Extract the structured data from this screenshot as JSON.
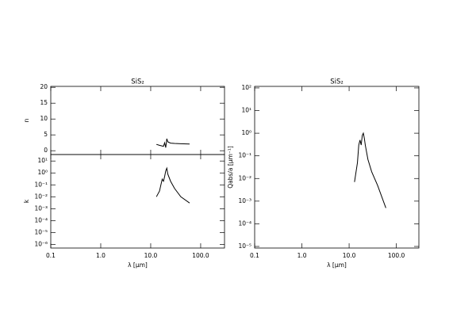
{
  "chart_data": [
    {
      "type": "line",
      "title": "SiS₂",
      "ylabel": "n",
      "xscale": "log",
      "yscale": "linear",
      "x": [
        13,
        15,
        18,
        19,
        20,
        21,
        22,
        25,
        30,
        40,
        60
      ],
      "values": [
        2.0,
        1.7,
        1.4,
        2.5,
        1.0,
        3.8,
        2.8,
        2.4,
        2.3,
        2.2,
        2.1
      ],
      "xlim": [
        0.1,
        300
      ],
      "xticks": [
        0.1,
        1,
        10,
        100
      ],
      "ylim": [
        -1.2,
        20.3
      ],
      "yticks": [
        0,
        5,
        10,
        15,
        20
      ]
    },
    {
      "type": "line",
      "xlabel": "λ [μm]",
      "ylabel": "k",
      "xscale": "log",
      "yscale": "log",
      "x": [
        13,
        15,
        16,
        17,
        18,
        19,
        20,
        21,
        22,
        25,
        30,
        40,
        60
      ],
      "values": [
        0.01,
        0.03,
        0.1,
        0.3,
        0.2,
        0.5,
        1.5,
        2.5,
        0.8,
        0.2,
        0.05,
        0.01,
        0.003
      ],
      "xlim": [
        0.1,
        300
      ],
      "xticks": [
        0.1,
        {
          "value": 1,
          "label": "1.0"
        },
        {
          "value": 10,
          "label": "10.0"
        },
        {
          "value": 100,
          "label": "100.0"
        }
      ],
      "ylim": [
        5e-07,
        35
      ],
      "yticks": [
        {
          "value": 10,
          "label": "10¹"
        },
        {
          "value": 1,
          "label": "10⁰"
        },
        {
          "value": 0.1,
          "label": "10⁻¹"
        },
        {
          "value": 0.01,
          "label": "10⁻²"
        },
        {
          "value": 0.001,
          "label": "10⁻³"
        },
        {
          "value": 0.0001,
          "label": "10⁻⁴"
        },
        {
          "value": 1e-05,
          "label": "10⁻⁵"
        },
        {
          "value": 1e-06,
          "label": "10⁻⁶"
        }
      ]
    },
    {
      "type": "line",
      "title": "SiS₂",
      "xlabel": "λ [μm]",
      "ylabel": "Qabs/a [μm⁻¹]",
      "xscale": "log",
      "yscale": "log",
      "x": [
        13,
        15,
        16,
        17,
        18,
        19,
        20,
        21,
        22,
        25,
        30,
        40,
        60
      ],
      "values": [
        0.007,
        0.05,
        0.3,
        0.5,
        0.3,
        0.8,
        1.0,
        0.6,
        0.3,
        0.07,
        0.02,
        0.005,
        0.0005
      ],
      "xlim": [
        0.1,
        300
      ],
      "xticks": [
        0.1,
        {
          "value": 1,
          "label": "1.0"
        },
        {
          "value": 10,
          "label": "10.0"
        },
        {
          "value": 100,
          "label": "100.0"
        }
      ],
      "ylim": [
        8.5e-06,
        117
      ],
      "yticks": [
        {
          "value": 100,
          "label": "10²"
        },
        {
          "value": 10,
          "label": "10¹"
        },
        {
          "value": 1,
          "label": "10⁰"
        },
        {
          "value": 0.1,
          "label": "10⁻¹"
        },
        {
          "value": 0.01,
          "label": "10⁻²"
        },
        {
          "value": 0.001,
          "label": "10⁻³"
        },
        {
          "value": 0.0001,
          "label": "10⁻⁴"
        },
        {
          "value": 1e-05,
          "label": "10⁻⁵"
        }
      ]
    }
  ]
}
